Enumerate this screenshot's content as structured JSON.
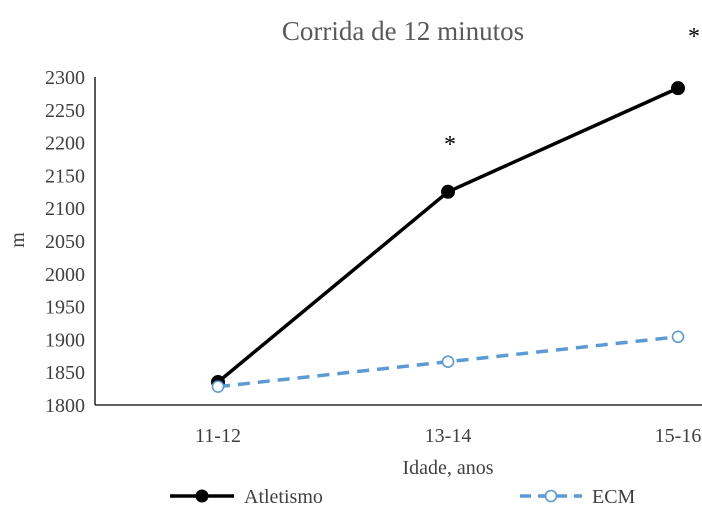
{
  "chart_data": {
    "type": "line",
    "title": "Corrida de 12 minutos",
    "xlabel": "Idade, anos",
    "ylabel": "m",
    "categories": [
      "11-12",
      "13-14",
      "15-16"
    ],
    "ylim": [
      1800,
      2300
    ],
    "yticks": [
      1800,
      1850,
      1900,
      1950,
      2000,
      2050,
      2100,
      2150,
      2200,
      2250,
      2300
    ],
    "grid": false,
    "legend_position": "bottom",
    "series": [
      {
        "name": "Atletismo",
        "values": [
          1835,
          2125,
          2283
        ],
        "color": "#000000",
        "line_style": "solid",
        "marker": "filled-circle"
      },
      {
        "name": "ECM",
        "values": [
          1828,
          1866,
          1904
        ],
        "color": "#5b9bd5",
        "line_style": "dashed",
        "marker": "open-circle"
      }
    ],
    "annotations": [
      {
        "text": "*",
        "category": "13-14"
      },
      {
        "text": "*",
        "category": "15-16"
      }
    ]
  }
}
